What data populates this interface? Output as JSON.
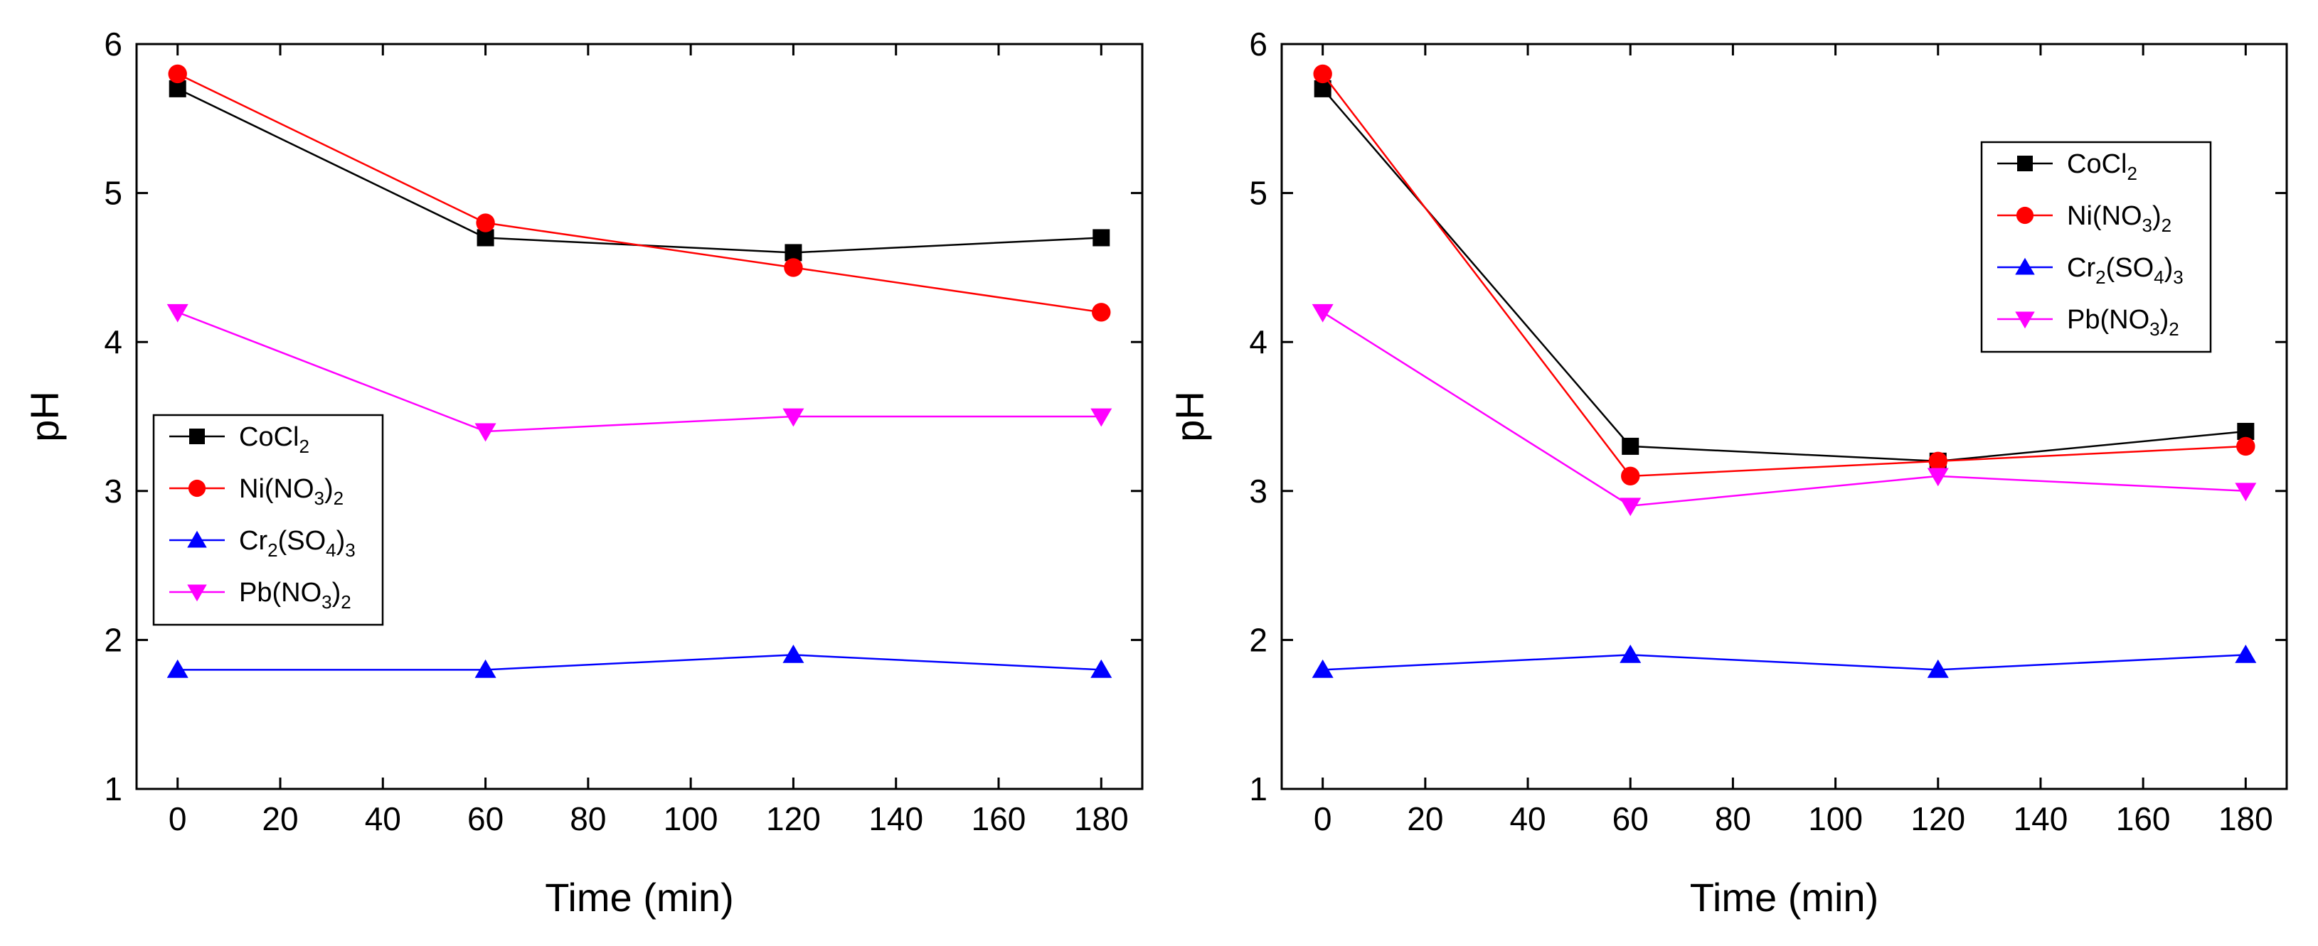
{
  "chart_data": [
    {
      "type": "line",
      "title": "",
      "xlabel": "Time (min)",
      "ylabel": "pH",
      "xlim": [
        -8,
        188
      ],
      "ylim": [
        1,
        6
      ],
      "xticks": [
        0,
        20,
        40,
        60,
        80,
        100,
        120,
        140,
        160,
        180
      ],
      "yticks": [
        1,
        2,
        3,
        4,
        5,
        6
      ],
      "grid": false,
      "legend_position": "middle-left",
      "series": [
        {
          "name": "CoCl2",
          "label": {
            "base": "CoCl",
            "sub": "2"
          },
          "color": "#000000",
          "marker": "square",
          "x": [
            0,
            60,
            120,
            180
          ],
          "y": [
            5.7,
            4.7,
            4.6,
            4.7
          ]
        },
        {
          "name": "Ni(NO3)2",
          "label": {
            "base": "Ni(NO",
            "sub": "3",
            "tail": ")",
            "sub2": "2"
          },
          "color": "#ff0000",
          "marker": "circle",
          "x": [
            0,
            60,
            120,
            180
          ],
          "y": [
            5.8,
            4.8,
            4.5,
            4.2
          ]
        },
        {
          "name": "Cr2(SO4)3",
          "label": {
            "base": "Cr",
            "sub": "2",
            "tail": "(SO",
            "sub2": "4",
            "tail2": ")",
            "sub3": "3"
          },
          "color": "#0000ff",
          "marker": "triangle-up",
          "x": [
            0,
            60,
            120,
            180
          ],
          "y": [
            1.8,
            1.8,
            1.9,
            1.8
          ]
        },
        {
          "name": "Pb(NO3)2",
          "label": {
            "base": "Pb(NO",
            "sub": "3",
            "tail": ")",
            "sub2": "2"
          },
          "color": "#ff00ff",
          "marker": "triangle-down",
          "x": [
            0,
            60,
            120,
            180
          ],
          "y": [
            4.2,
            3.4,
            3.5,
            3.5
          ]
        }
      ]
    },
    {
      "type": "line",
      "title": "",
      "xlabel": "Time (min)",
      "ylabel": "pH",
      "xlim": [
        -8,
        188
      ],
      "ylim": [
        1,
        6
      ],
      "xticks": [
        0,
        20,
        40,
        60,
        80,
        100,
        120,
        140,
        160,
        180
      ],
      "yticks": [
        1,
        2,
        3,
        4,
        5,
        6
      ],
      "grid": false,
      "legend_position": "top-right",
      "series": [
        {
          "name": "CoCl2",
          "label": {
            "base": "CoCl",
            "sub": "2"
          },
          "color": "#000000",
          "marker": "square",
          "x": [
            0,
            60,
            120,
            180
          ],
          "y": [
            5.7,
            3.3,
            3.2,
            3.4
          ]
        },
        {
          "name": "Ni(NO3)2",
          "label": {
            "base": "Ni(NO",
            "sub": "3",
            "tail": ")",
            "sub2": "2"
          },
          "color": "#ff0000",
          "marker": "circle",
          "x": [
            0,
            60,
            120,
            180
          ],
          "y": [
            5.8,
            3.1,
            3.2,
            3.3
          ]
        },
        {
          "name": "Cr2(SO4)3",
          "label": {
            "base": "Cr",
            "sub": "2",
            "tail": "(SO",
            "sub2": "4",
            "tail2": ")",
            "sub3": "3"
          },
          "color": "#0000ff",
          "marker": "triangle-up",
          "x": [
            0,
            60,
            120,
            180
          ],
          "y": [
            1.8,
            1.9,
            1.8,
            1.9
          ]
        },
        {
          "name": "Pb(NO3)2",
          "label": {
            "base": "Pb(NO",
            "sub": "3",
            "tail": ")",
            "sub2": "2"
          },
          "color": "#ff00ff",
          "marker": "triangle-down",
          "x": [
            0,
            60,
            120,
            180
          ],
          "y": [
            4.2,
            2.9,
            3.1,
            3.0
          ]
        }
      ]
    }
  ]
}
